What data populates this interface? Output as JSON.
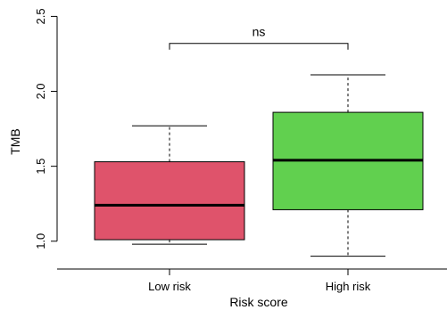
{
  "chart_data": {
    "type": "box",
    "xlabel": "Risk score",
    "ylabel": "TMB",
    "ylim": [
      0.85,
      2.55
    ],
    "yticks": [
      "1.0",
      "1.5",
      "2.0",
      "2.5"
    ],
    "categories": [
      "Low risk",
      "High risk"
    ],
    "boxes": [
      {
        "label": "Low risk",
        "whisker_low": 0.98,
        "q1": 1.01,
        "median": 1.24,
        "q3": 1.53,
        "whisker_high": 1.77,
        "color": "#df536b"
      },
      {
        "label": "High risk",
        "whisker_low": 0.9,
        "q1": 1.21,
        "median": 1.54,
        "q3": 1.86,
        "whisker_high": 2.11,
        "color": "#61d04f"
      }
    ],
    "annotation": {
      "text": "ns",
      "bracket_y": 2.32
    },
    "grid": false,
    "legend": "none"
  }
}
